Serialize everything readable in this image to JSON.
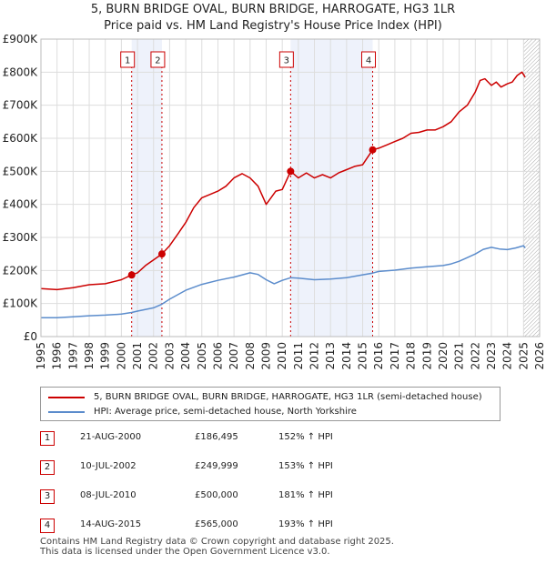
{
  "title_line1": "5, BURN BRIDGE OVAL, BURN BRIDGE, HARROGATE, HG3 1LR",
  "title_line2": "Price paid vs. HM Land Registry's House Price Index (HPI)",
  "colors": {
    "property": "#cc0000",
    "hpi": "#5b8ccc",
    "marker": "#cc0000",
    "shade": "#eef2fb",
    "grid": "#dddddd"
  },
  "chart_data": {
    "type": "line",
    "title": "5, BURN BRIDGE OVAL, BURN BRIDGE, HARROGATE, HG3 1LR — Price paid vs. HM Land Registry's House Price Index (HPI)",
    "xlim": [
      1995,
      2026
    ],
    "ylim": [
      0,
      900000
    ],
    "x_ticks": [
      1995,
      1996,
      1997,
      1998,
      1999,
      2000,
      2001,
      2002,
      2003,
      2004,
      2005,
      2006,
      2007,
      2008,
      2009,
      2010,
      2011,
      2012,
      2013,
      2014,
      2015,
      2016,
      2017,
      2018,
      2019,
      2020,
      2021,
      2022,
      2023,
      2024,
      2025,
      2026
    ],
    "y_ticks": [
      {
        "value": 0,
        "label": "£0"
      },
      {
        "value": 100000,
        "label": "£100K"
      },
      {
        "value": 200000,
        "label": "£200K"
      },
      {
        "value": 300000,
        "label": "£300K"
      },
      {
        "value": 400000,
        "label": "£400K"
      },
      {
        "value": 500000,
        "label": "£500K"
      },
      {
        "value": 600000,
        "label": "£600K"
      },
      {
        "value": 700000,
        "label": "£700K"
      },
      {
        "value": 800000,
        "label": "£800K"
      },
      {
        "value": 900000,
        "label": "£900K"
      }
    ],
    "future_hatch_start": 2025.0,
    "series": [
      {
        "name": "5, BURN BRIDGE OVAL, BURN BRIDGE, HARROGATE, HG3 1LR (semi-detached house)",
        "color": "#cc0000",
        "x": [
          1995.0,
          1996.0,
          1997.0,
          1998.0,
          1999.0,
          2000.0,
          2000.64,
          2001.0,
          2001.5,
          2002.0,
          2002.52,
          2003.0,
          2003.5,
          2004.0,
          2004.5,
          2005.0,
          2005.5,
          2006.0,
          2006.5,
          2007.0,
          2007.5,
          2008.0,
          2008.5,
          2009.0,
          2009.3,
          2009.6,
          2010.0,
          2010.52,
          2011.0,
          2011.5,
          2012.0,
          2012.5,
          2013.0,
          2013.5,
          2014.0,
          2014.5,
          2015.0,
          2015.62,
          2016.0,
          2016.5,
          2017.0,
          2017.5,
          2018.0,
          2018.5,
          2019.0,
          2019.5,
          2020.0,
          2020.5,
          2021.0,
          2021.5,
          2022.0,
          2022.3,
          2022.6,
          2023.0,
          2023.3,
          2023.6,
          2024.0,
          2024.3,
          2024.6,
          2024.9,
          2025.1
        ],
        "values": [
          145000,
          142000,
          148000,
          157000,
          160000,
          172000,
          186495,
          193000,
          215000,
          232000,
          249999,
          275000,
          310000,
          345000,
          390000,
          420000,
          430000,
          440000,
          455000,
          480000,
          493000,
          480000,
          455000,
          400000,
          420000,
          440000,
          445000,
          500000,
          480000,
          495000,
          480000,
          490000,
          480000,
          495000,
          505000,
          515000,
          520000,
          565000,
          570000,
          580000,
          590000,
          600000,
          615000,
          618000,
          625000,
          625000,
          635000,
          650000,
          680000,
          700000,
          740000,
          775000,
          780000,
          760000,
          770000,
          755000,
          765000,
          770000,
          790000,
          800000,
          785000
        ]
      },
      {
        "name": "HPI: Average price, semi-detached house, North Yorkshire",
        "color": "#5b8ccc",
        "x": [
          1995.0,
          1996.0,
          1997.0,
          1998.0,
          1999.0,
          2000.0,
          2000.64,
          2001.0,
          2002.0,
          2002.52,
          2003.0,
          2004.0,
          2005.0,
          2006.0,
          2007.0,
          2008.0,
          2008.5,
          2009.0,
          2009.5,
          2010.0,
          2010.52,
          2011.0,
          2012.0,
          2013.0,
          2014.0,
          2015.0,
          2015.62,
          2016.0,
          2017.0,
          2018.0,
          2019.0,
          2020.0,
          2020.5,
          2021.0,
          2022.0,
          2022.5,
          2023.0,
          2023.5,
          2024.0,
          2024.5,
          2025.0,
          2025.1
        ],
        "values": [
          57000,
          57000,
          60000,
          63000,
          65000,
          68000,
          73000,
          77000,
          87000,
          98000,
          113000,
          140000,
          158000,
          170000,
          180000,
          193000,
          188000,
          172000,
          160000,
          170000,
          178000,
          177000,
          172000,
          174000,
          178000,
          187000,
          192000,
          197000,
          201000,
          207000,
          211000,
          215000,
          220000,
          228000,
          250000,
          264000,
          270000,
          265000,
          263000,
          268000,
          275000,
          268000
        ]
      }
    ],
    "sales": [
      {
        "n": "1",
        "x": 2000.64,
        "y": 186495,
        "date": "21-AUG-2000",
        "price": "£186,495",
        "hpi": "152% ↑ HPI"
      },
      {
        "n": "2",
        "x": 2002.52,
        "y": 249999,
        "date": "10-JUL-2002",
        "price": "£249,999",
        "hpi": "153% ↑ HPI"
      },
      {
        "n": "3",
        "x": 2010.52,
        "y": 500000,
        "date": "08-JUL-2010",
        "price": "£500,000",
        "hpi": "181% ↑ HPI"
      },
      {
        "n": "4",
        "x": 2015.62,
        "y": 565000,
        "date": "14-AUG-2015",
        "price": "£565,000",
        "hpi": "193% ↑ HPI"
      }
    ]
  },
  "legend": {
    "property_label": "5, BURN BRIDGE OVAL, BURN BRIDGE, HARROGATE, HG3 1LR (semi-detached house)",
    "hpi_label": "HPI: Average price, semi-detached house, North Yorkshire"
  },
  "footer": {
    "line1": "Contains HM Land Registry data © Crown copyright and database right 2025.",
    "line2": "This data is licensed under the Open Government Licence v3.0."
  }
}
